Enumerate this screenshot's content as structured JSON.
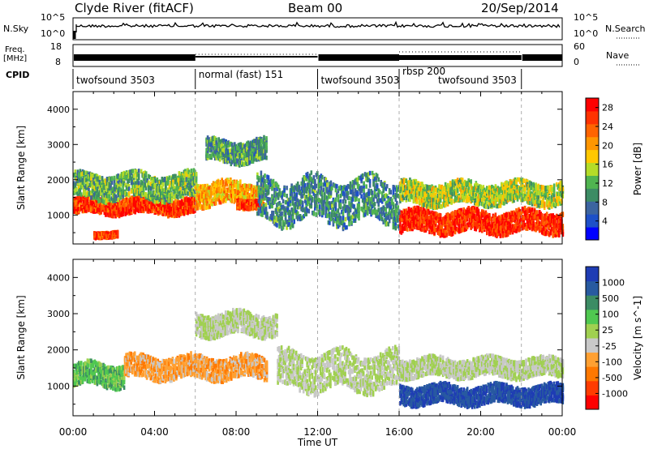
{
  "header": {
    "station": "Clyde River (fitACF)",
    "beam": "Beam 00",
    "date": "20/Sep/2014"
  },
  "side_labels": {
    "nsky": "N.Sky",
    "freq_line1": "Freq.",
    "freq_line2": "[MHz]",
    "cpid": "CPID",
    "nsearch": "N.Search",
    "nave": "Nave"
  },
  "small_axes": {
    "noise_left": [
      "10^5",
      "10^0"
    ],
    "noise_right": [
      "10^5",
      "10^0"
    ],
    "freq_left": [
      "18",
      "8"
    ],
    "nave_right": [
      "60",
      "0"
    ]
  },
  "cpid_segments": [
    {
      "label": "twofsound 3503",
      "start_hour": 0,
      "end_hour": 6
    },
    {
      "label": "normal (fast) 151",
      "start_hour": 6,
      "end_hour": 12
    },
    {
      "label": "twofsound 3503",
      "start_hour": 12,
      "end_hour": 16
    },
    {
      "label": "rbsp 200",
      "start_hour": 16,
      "end_hour": 22
    },
    {
      "label": "twofsound 3503",
      "start_hour": 16,
      "end_hour": 22
    }
  ],
  "colors": {
    "power": [
      "#0000ff",
      "#1e50c8",
      "#3c64a0",
      "#3c8c64",
      "#50b450",
      "#b4dc28",
      "#ffc800",
      "#ff9600",
      "#ff6400",
      "#ff3200",
      "#ff0000"
    ],
    "velocity": [
      "#ff0000",
      "#ff3c00",
      "#ff7800",
      "#ffa032",
      "#c8c8c8",
      "#a0d050",
      "#50c850",
      "#3c8c64",
      "#285aa0",
      "#1e3cb4"
    ]
  },
  "chart_data": [
    {
      "type": "heatmap",
      "ylabel": "Slant Range [km]",
      "x_ticks": [
        "00:00",
        "04:00",
        "08:00",
        "12:00",
        "16:00",
        "20:00",
        "00:00"
      ],
      "xlim_hours": [
        0,
        24
      ],
      "y_ticks": [
        "4000",
        "3000",
        "2000",
        "1000"
      ],
      "ylim": [
        180,
        4500
      ],
      "colorbar": {
        "label": "Power [dB]",
        "ticks": [
          "28",
          "24",
          "20",
          "16",
          "12",
          "8",
          "4"
        ],
        "range": [
          0,
          30
        ]
      },
      "features": [
        {
          "t_start": 0.0,
          "t_end": 6.0,
          "range_center_km": 1250,
          "range_halfwidth_km": 220,
          "value": 26
        },
        {
          "t_start": 0.0,
          "t_end": 6.0,
          "range_center_km": 1800,
          "range_halfwidth_km": 350,
          "value": 12
        },
        {
          "t_start": 1.0,
          "t_end": 2.2,
          "range_center_km": 430,
          "range_halfwidth_km": 70,
          "value": 26
        },
        {
          "t_start": 6.0,
          "t_end": 9.3,
          "range_center_km": 1600,
          "range_halfwidth_km": 320,
          "value": 20
        },
        {
          "t_start": 8.0,
          "t_end": 9.2,
          "range_center_km": 1320,
          "range_halfwidth_km": 120,
          "value": 26
        },
        {
          "t_start": 6.5,
          "t_end": 9.5,
          "range_center_km": 2800,
          "range_halfwidth_km": 300,
          "value": 10
        },
        {
          "t_start": 9.0,
          "t_end": 16.0,
          "range_center_km": 1400,
          "range_halfwidth_km": 600,
          "value": 9
        },
        {
          "t_start": 16.0,
          "t_end": 24.0,
          "range_center_km": 800,
          "range_halfwidth_km": 300,
          "value": 27
        },
        {
          "t_start": 16.0,
          "t_end": 24.0,
          "range_center_km": 1600,
          "range_halfwidth_km": 300,
          "value": 15
        }
      ]
    },
    {
      "type": "heatmap",
      "ylabel": "Slant Range [km]",
      "xlabel": "Time UT",
      "x_ticks": [
        "00:00",
        "04:00",
        "08:00",
        "12:00",
        "16:00",
        "20:00",
        "00:00"
      ],
      "xlim_hours": [
        0,
        24
      ],
      "y_ticks": [
        "4000",
        "3000",
        "2000",
        "1000"
      ],
      "ylim": [
        180,
        4500
      ],
      "colorbar": {
        "label": "Velocity [m s^-1]",
        "ticks": [
          "1000",
          "500",
          "100",
          "25",
          "-25",
          "-100",
          "-500",
          "-1000"
        ],
        "range": [
          -1000,
          1000
        ]
      },
      "features": [
        {
          "t_start": 0.0,
          "t_end": 2.5,
          "range_center_km": 1300,
          "range_halfwidth_km": 300,
          "value": 300
        },
        {
          "t_start": 2.5,
          "t_end": 9.5,
          "range_center_km": 1500,
          "range_halfwidth_km": 300,
          "value": -300
        },
        {
          "t_start": 6.0,
          "t_end": 10.0,
          "range_center_km": 2700,
          "range_halfwidth_km": 300,
          "value": 0
        },
        {
          "t_start": 10.0,
          "t_end": 16.0,
          "range_center_km": 1400,
          "range_halfwidth_km": 500,
          "value": 0
        },
        {
          "t_start": 16.0,
          "t_end": 24.0,
          "range_center_km": 750,
          "range_halfwidth_km": 250,
          "value": 800
        },
        {
          "t_start": 16.0,
          "t_end": 24.0,
          "range_center_km": 1500,
          "range_halfwidth_km": 250,
          "value": 0
        }
      ]
    }
  ]
}
